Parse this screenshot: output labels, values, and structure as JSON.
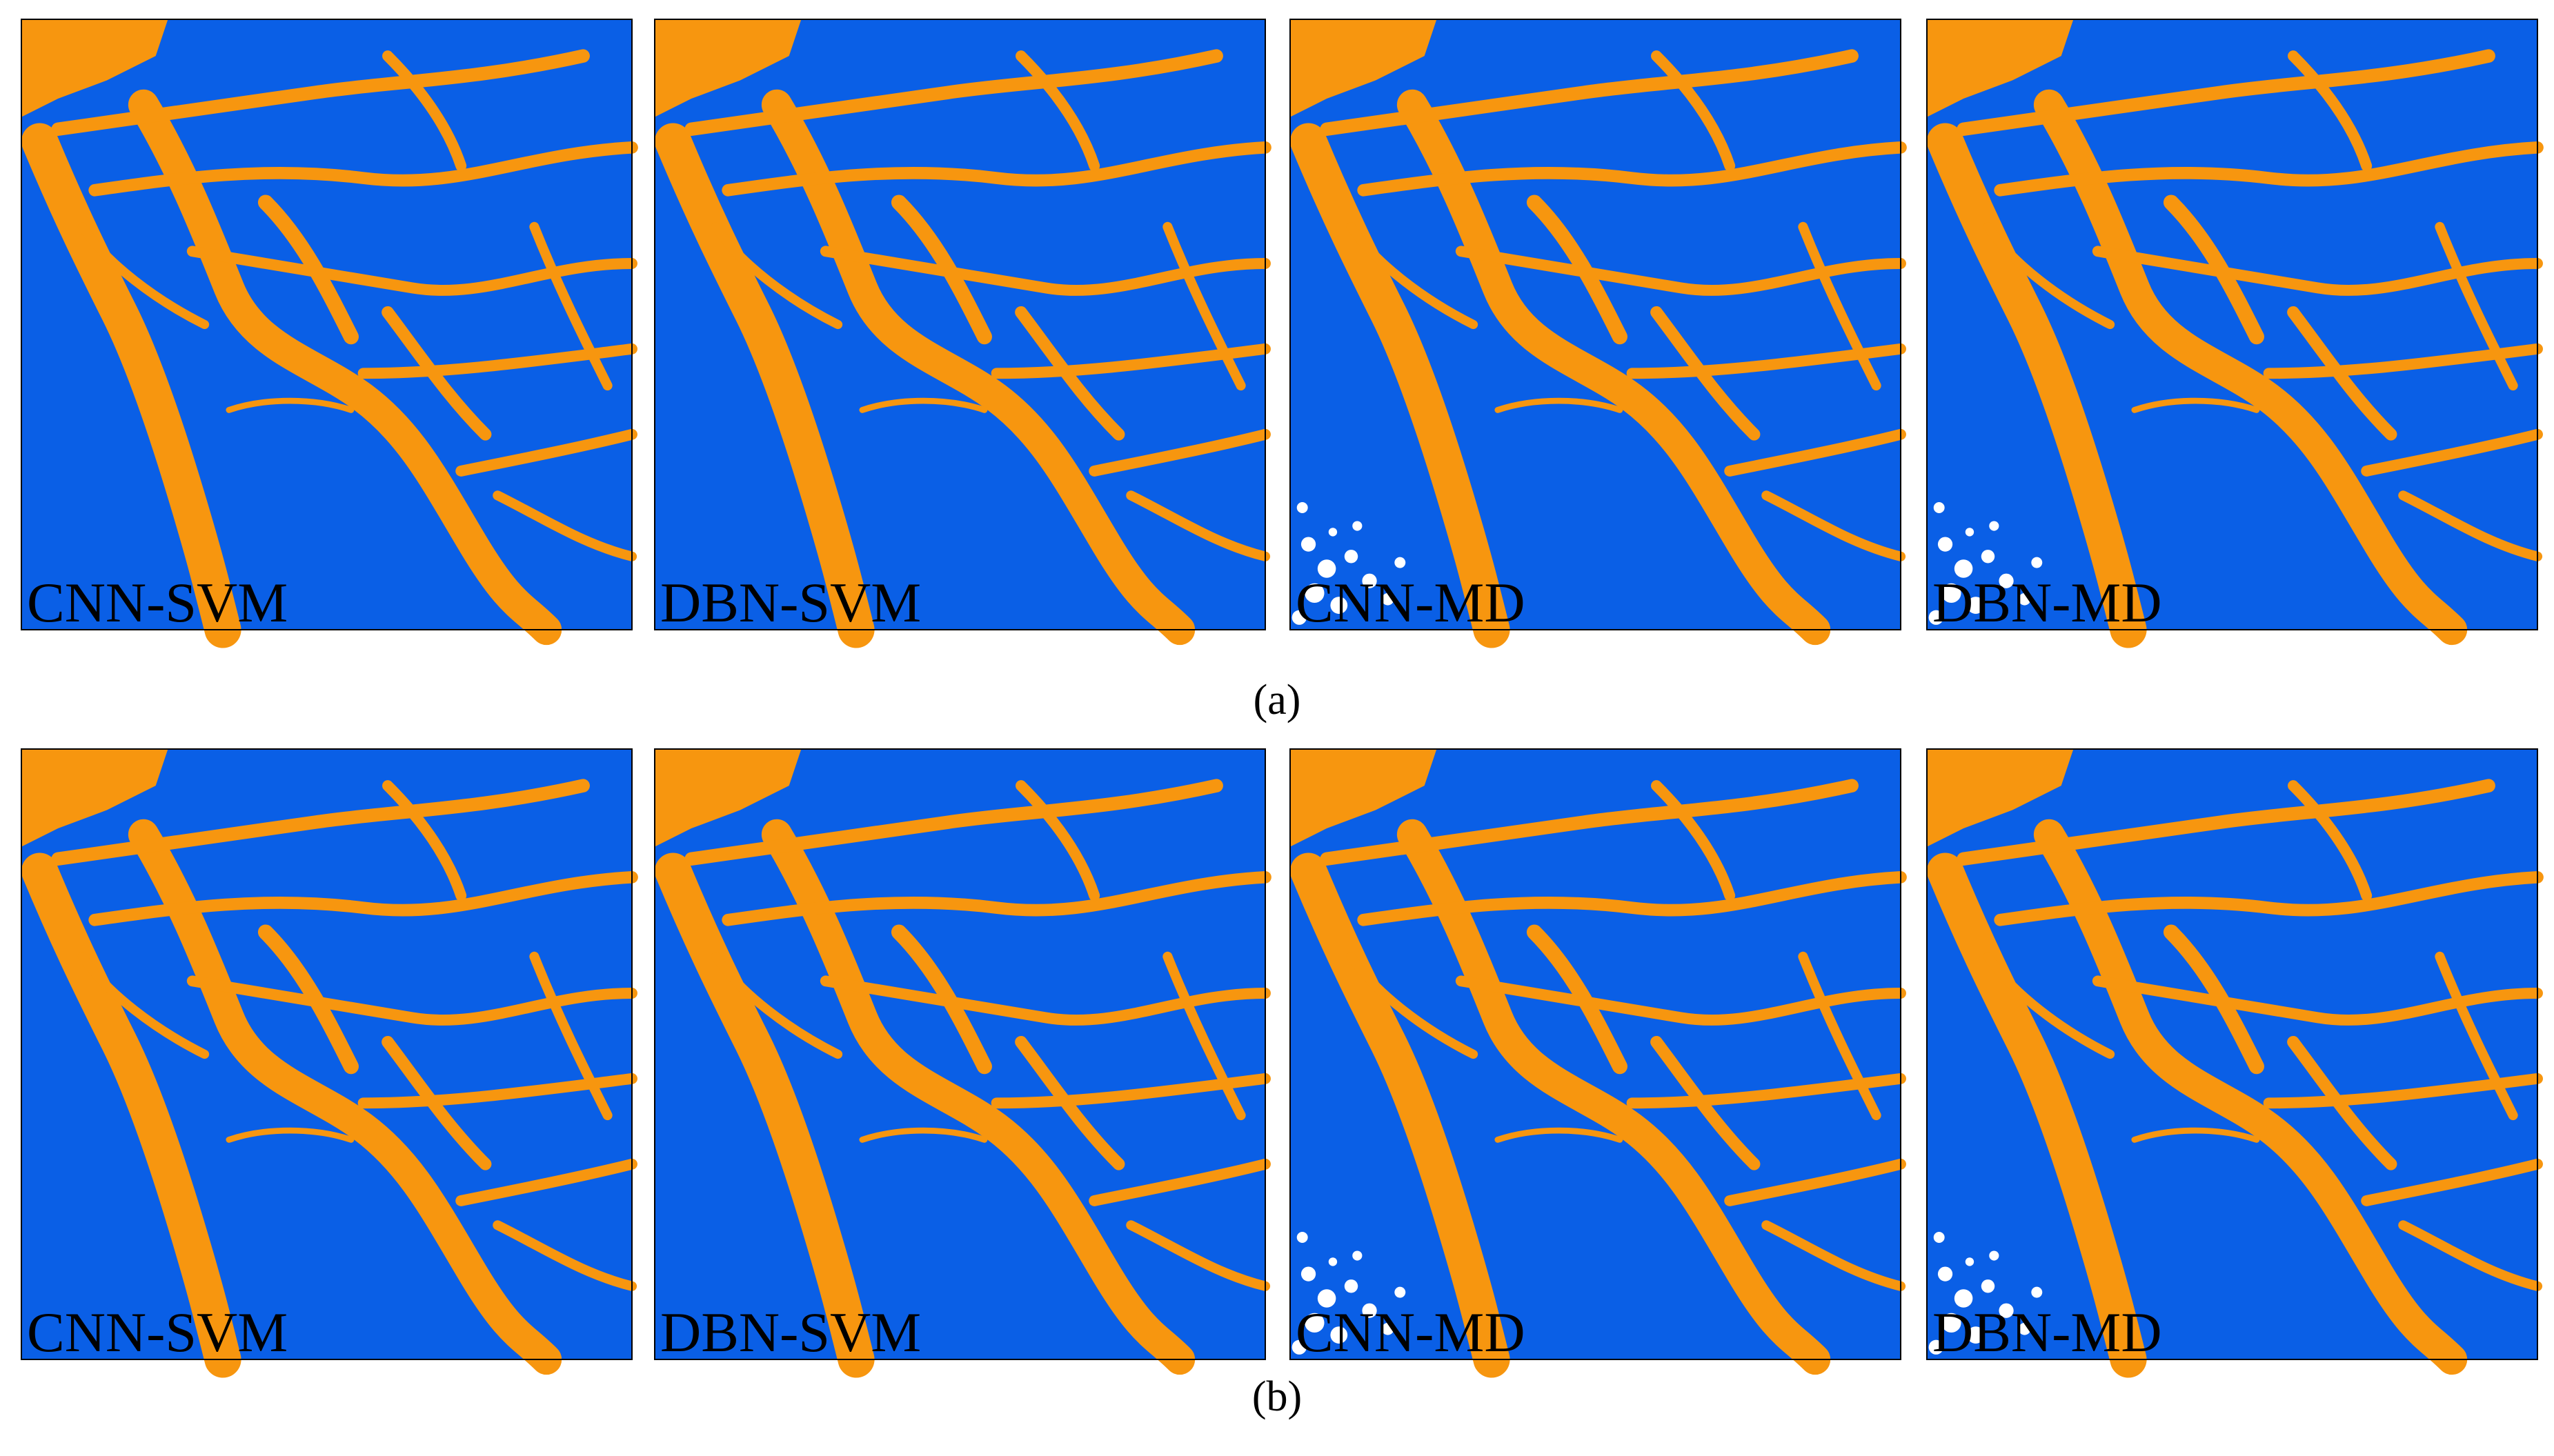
{
  "figure": {
    "rows": [
      {
        "caption": "(a)",
        "panels": [
          {
            "label": "CNN-SVM"
          },
          {
            "label": "DBN-SVM"
          },
          {
            "label": "CNN-MD"
          },
          {
            "label": "DBN-MD"
          }
        ]
      },
      {
        "caption": "(b)",
        "panels": [
          {
            "label": "CNN-SVM"
          },
          {
            "label": "DBN-SVM"
          },
          {
            "label": "CNN-MD"
          },
          {
            "label": "DBN-MD"
          }
        ]
      }
    ]
  }
}
